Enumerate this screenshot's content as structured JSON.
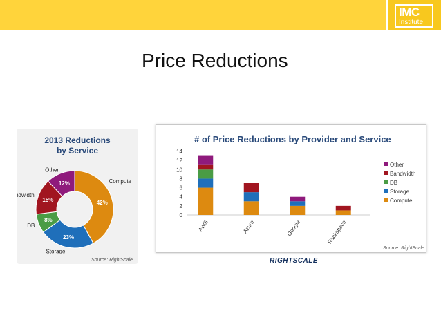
{
  "logo": {
    "top": "IMC",
    "bottom": "Institute"
  },
  "slide": {
    "title": "Price Reductions"
  },
  "footer": {
    "brand": "RIGHTSCALE"
  },
  "chart_data": [
    {
      "type": "pie",
      "title": "2013 Reductions by Service",
      "title_lines": [
        "2013 Reductions",
        "by Service"
      ],
      "source": "Source: RightScale",
      "donut": true,
      "slices": [
        {
          "label": "Compute",
          "value": 42,
          "display": "42%",
          "color": "#dd8a10"
        },
        {
          "label": "Storage",
          "value": 23,
          "display": "23%",
          "color": "#1f6fba"
        },
        {
          "label": "DB",
          "value": 8,
          "display": "8%",
          "color": "#4a9c45"
        },
        {
          "label": "Bandwidth",
          "value": 15,
          "display": "15%",
          "color": "#a11520"
        },
        {
          "label": "Other",
          "value": 12,
          "display": "12%",
          "color": "#8f1a7c"
        }
      ]
    },
    {
      "type": "bar",
      "stacked": true,
      "title": "# of Price Reductions by Provider and Service",
      "source": "Source: RightScale",
      "categories": [
        "AWS",
        "Azure",
        "Google",
        "Rackspace"
      ],
      "ylim": [
        0,
        14
      ],
      "yticks": [
        0,
        2,
        4,
        6,
        8,
        10,
        12,
        14
      ],
      "grid": false,
      "legend_position": "right",
      "series": [
        {
          "name": "Compute",
          "color": "#dd8a10",
          "values": [
            6,
            3,
            2,
            1
          ]
        },
        {
          "name": "Storage",
          "color": "#1f6fba",
          "values": [
            2,
            2,
            1,
            0
          ]
        },
        {
          "name": "DB",
          "color": "#4a9c45",
          "values": [
            2,
            0,
            0,
            0
          ]
        },
        {
          "name": "Bandwidth",
          "color": "#a11520",
          "values": [
            1,
            2,
            0,
            1
          ]
        },
        {
          "name": "Other",
          "color": "#8f1a7c",
          "values": [
            2,
            0,
            1,
            0
          ]
        }
      ]
    }
  ]
}
